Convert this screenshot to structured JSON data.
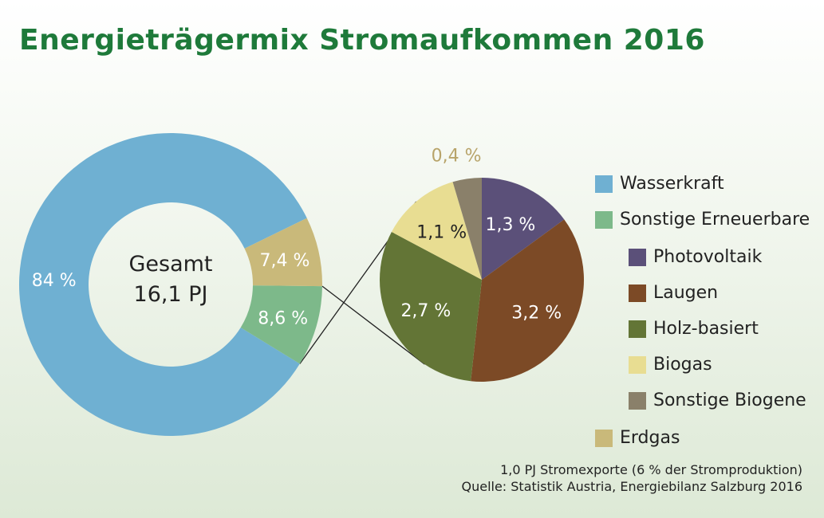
{
  "title": "Energieträgermix Stromaufkommen 2016",
  "chart_data": [
    {
      "type": "pie",
      "donut": true,
      "center_label": [
        "Gesamt",
        "16,1 PJ"
      ],
      "slices": [
        {
          "name": "Wasserkraft",
          "value": 84,
          "label": "84 %",
          "color": "#6fb0d2"
        },
        {
          "name": "Sonstige Erneuerbare",
          "value": 8.6,
          "label": "8,6 %",
          "color": "#7db98a"
        },
        {
          "name": "Erdgas",
          "value": 7.4,
          "label": "7,4 %",
          "color": "#c9b97a"
        }
      ]
    },
    {
      "type": "pie",
      "breakdown_of": "Sonstige Erneuerbare",
      "slices": [
        {
          "name": "Photovoltaik",
          "value": 1.3,
          "label": "1,3 %",
          "color": "#5b5079"
        },
        {
          "name": "Laugen",
          "value": 3.2,
          "label": "3,2 %",
          "color": "#7c4a26"
        },
        {
          "name": "Holz-basiert",
          "value": 2.7,
          "label": "2,7 %",
          "color": "#637536"
        },
        {
          "name": "Biogas",
          "value": 1.1,
          "label": "1,1 %",
          "color": "#e8dd92"
        },
        {
          "name": "Sonstige Biogene",
          "value": 0.4,
          "label": "0,4 %",
          "color": "#8a806a"
        }
      ]
    }
  ],
  "legend": [
    {
      "label": "Wasserkraft",
      "color": "#6fb0d2",
      "indent": false
    },
    {
      "label": "Sonstige Erneuerbare",
      "color": "#7db98a",
      "indent": false
    },
    {
      "label": "Photovoltaik",
      "color": "#5b5079",
      "indent": true
    },
    {
      "label": "Laugen",
      "color": "#7c4a26",
      "indent": true
    },
    {
      "label": "Holz-basiert",
      "color": "#637536",
      "indent": true
    },
    {
      "label": "Biogas",
      "color": "#e8dd92",
      "indent": true
    },
    {
      "label": "Sonstige Biogene",
      "color": "#8a806a",
      "indent": true
    },
    {
      "label": "Erdgas",
      "color": "#c9b97a",
      "indent": false
    }
  ],
  "notes": {
    "export": "1,0 PJ Stromexporte (6 % der Stromproduktion)",
    "source": "Quelle: Statistik Austria, Energiebilanz Salzburg 2016"
  }
}
